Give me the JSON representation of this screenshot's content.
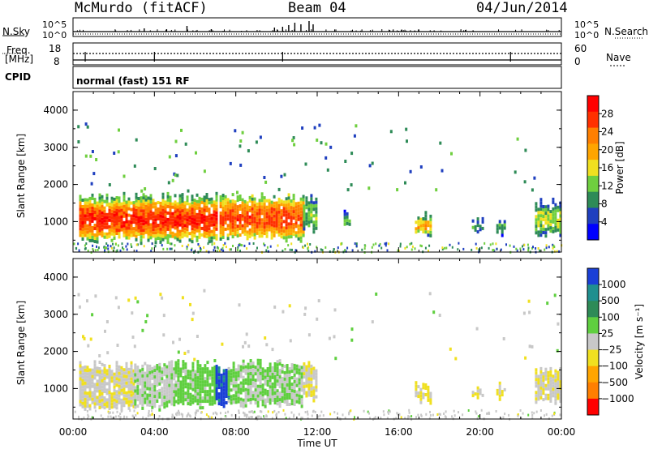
{
  "header": {
    "station": "McMurdo (fitACF)",
    "beam": "Beam 04",
    "date": "04/Jun/2014"
  },
  "panels": {
    "nsky_label": "N.Sky",
    "nsky_ticks": [
      "10^5",
      "10^0"
    ],
    "nsearch_label": "N.Search",
    "nsearch_ticks": [
      "10^5",
      "10^0"
    ],
    "freq_label_line1": "Freq.",
    "freq_label_line2": "[MHz]",
    "freq_ticks": [
      "18",
      "8"
    ],
    "nave_label": "Nave",
    "nave_ticks": [
      "60",
      "0"
    ],
    "cpid_label": "CPID",
    "cpid_text": "normal (fast) 151 RF"
  },
  "colors": {
    "power_scale": [
      "#0000ff",
      "#1f3fbf",
      "#2e8b57",
      "#6fcf3f",
      "#f0e020",
      "#ffa500",
      "#ff7f00",
      "#ff3000",
      "#ff0000"
    ],
    "velocity_scale": [
      "#1a3fd6",
      "#1f8f8f",
      "#2e8b57",
      "#5fcf3f",
      "#c8c8c8",
      "#f0e020",
      "#ffa500",
      "#ff7f00",
      "#ff0000"
    ]
  },
  "chart_data": [
    {
      "type": "heatmap",
      "panel": "power",
      "ylabel": "Slant Range [km]",
      "ylim": [
        180,
        4500
      ],
      "yticks": [
        "4000",
        "3000",
        "2000",
        "1000"
      ],
      "xlabel": "Time UT",
      "xticks": [
        "00:00",
        "04:00",
        "08:00",
        "12:00",
        "16:00",
        "20:00",
        "00:00"
      ],
      "xlim_hours": [
        0,
        24
      ],
      "colorbar": {
        "label": "Power [dB]",
        "tick_labels": [
          "28",
          "24",
          "20",
          "16",
          "12",
          "8",
          "4"
        ],
        "range": [
          0,
          32
        ]
      },
      "echo_regions": [
        {
          "t_start": 0.3,
          "t_end": 7.0,
          "r_bottom": 550,
          "r_top": 1650,
          "core_value": 28,
          "edge_value": 10
        },
        {
          "t_start": 7.2,
          "t_end": 11.3,
          "r_bottom": 600,
          "r_top": 1650,
          "core_value": 26,
          "edge_value": 12
        },
        {
          "t_start": 11.3,
          "t_end": 12.0,
          "r_bottom": 800,
          "r_top": 1600,
          "core_value": 12,
          "edge_value": 8
        },
        {
          "t_start": 13.3,
          "t_end": 13.6,
          "r_bottom": 900,
          "r_top": 1200,
          "core_value": 10,
          "edge_value": 6
        },
        {
          "t_start": 16.8,
          "t_end": 17.6,
          "r_bottom": 700,
          "r_top": 1150,
          "core_value": 20,
          "edge_value": 8
        },
        {
          "t_start": 19.6,
          "t_end": 20.1,
          "r_bottom": 800,
          "r_top": 1000,
          "core_value": 10,
          "edge_value": 6
        },
        {
          "t_start": 20.8,
          "t_end": 21.2,
          "r_bottom": 750,
          "r_top": 1050,
          "core_value": 10,
          "edge_value": 6
        },
        {
          "t_start": 22.7,
          "t_end": 24.0,
          "r_bottom": 700,
          "r_top": 1500,
          "core_value": 14,
          "edge_value": 6
        }
      ]
    },
    {
      "type": "heatmap",
      "panel": "velocity",
      "ylabel": "Slant Range [km]",
      "ylim": [
        180,
        4500
      ],
      "yticks": [
        "4000",
        "3000",
        "2000",
        "1000"
      ],
      "xlabel": "Time UT",
      "xticks": [
        "00:00",
        "04:00",
        "08:00",
        "12:00",
        "16:00",
        "20:00",
        "00:00"
      ],
      "xlim_hours": [
        0,
        24
      ],
      "colorbar": {
        "label": "Velocity [m s⁻¹]",
        "tick_labels": [
          "1000",
          "500",
          "100",
          "25",
          "−25",
          "−100",
          "−500",
          "−1000"
        ],
        "range": [
          -1200,
          1200
        ]
      },
      "echo_regions": [
        {
          "t_start": 0.3,
          "t_end": 3.0,
          "r_bottom": 550,
          "r_top": 1650,
          "value": -100
        },
        {
          "t_start": 3.0,
          "t_end": 5.0,
          "r_bottom": 550,
          "r_top": 1650,
          "value": 100
        },
        {
          "t_start": 5.0,
          "t_end": 7.0,
          "r_bottom": 550,
          "r_top": 1650,
          "value": 200
        },
        {
          "t_start": 7.0,
          "t_end": 7.6,
          "r_bottom": 600,
          "r_top": 1500,
          "value": 1000
        },
        {
          "t_start": 7.6,
          "t_end": 11.3,
          "r_bottom": 600,
          "r_top": 1650,
          "value": 150
        },
        {
          "t_start": 11.3,
          "t_end": 12.0,
          "r_bottom": 800,
          "r_top": 1600,
          "value": -100
        },
        {
          "t_start": 16.8,
          "t_end": 17.6,
          "r_bottom": 700,
          "r_top": 1150,
          "value": -150
        },
        {
          "t_start": 19.6,
          "t_end": 20.1,
          "r_bottom": 800,
          "r_top": 1000,
          "value": -100
        },
        {
          "t_start": 20.8,
          "t_end": 21.2,
          "r_bottom": 750,
          "r_top": 1050,
          "value": -150
        },
        {
          "t_start": 22.7,
          "t_end": 24.0,
          "r_bottom": 700,
          "r_top": 1500,
          "value": -120
        }
      ]
    }
  ]
}
